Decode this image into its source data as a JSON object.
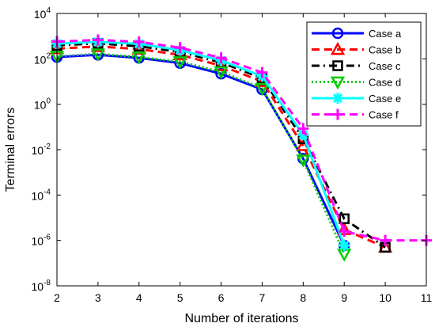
{
  "chart_data": {
    "type": "line",
    "xlabel": "Number of iterations",
    "ylabel": "Terminal errors",
    "xlim": [
      2,
      11
    ],
    "ylim": [
      1e-08,
      10000.0
    ],
    "yscale": "log",
    "grid": false,
    "legend_position": "top-right",
    "x_ticks": [
      "2",
      "3",
      "4",
      "5",
      "6",
      "7",
      "8",
      "9",
      "10",
      "11"
    ],
    "y_ticks": [
      {
        "base": "10",
        "exp": "-8",
        "value": 1e-08
      },
      {
        "base": "10",
        "exp": "-6",
        "value": 1e-06
      },
      {
        "base": "10",
        "exp": "-4",
        "value": 0.0001
      },
      {
        "base": "10",
        "exp": "-2",
        "value": 0.01
      },
      {
        "base": "10",
        "exp": "0",
        "value": 1
      },
      {
        "base": "10",
        "exp": "2",
        "value": 100.0
      },
      {
        "base": "10",
        "exp": "4",
        "value": 10000.0
      }
    ],
    "series": [
      {
        "name": "Case a",
        "color": "#0000ff",
        "dash": "solid",
        "marker": "circle",
        "x": [
          2,
          3,
          4,
          5,
          6,
          7,
          8,
          9
        ],
        "y": [
          120,
          150,
          110,
          65,
          22,
          4.5,
          0.004,
          6e-07
        ]
      },
      {
        "name": "Case b",
        "color": "#ff0000",
        "dash": "dash",
        "marker": "triangle-up",
        "x": [
          2,
          3,
          4,
          5,
          6,
          7,
          8,
          9,
          10
        ],
        "y": [
          280,
          350,
          270,
          150,
          50,
          10,
          0.015,
          3e-06,
          5e-07
        ]
      },
      {
        "name": "Case c",
        "color": "#000000",
        "dash": "dashdot",
        "marker": "square",
        "x": [
          2,
          3,
          4,
          5,
          6,
          7,
          8,
          9,
          10
        ],
        "y": [
          390,
          480,
          360,
          200,
          70,
          14,
          0.03,
          9e-06,
          5e-07
        ]
      },
      {
        "name": "Case d",
        "color": "#00cc00",
        "dash": "dot",
        "marker": "triangle-down",
        "x": [
          2,
          3,
          4,
          5,
          6,
          7,
          8,
          9
        ],
        "y": [
          130,
          165,
          120,
          75,
          27,
          5,
          0.0035,
          2.5e-07
        ]
      },
      {
        "name": "Case e",
        "color": "#00ffff",
        "dash": "solid",
        "marker": "star",
        "x": [
          2,
          3,
          4,
          5,
          6,
          7,
          8,
          9
        ],
        "y": [
          470,
          560,
          460,
          240,
          85,
          17,
          0.045,
          6e-07
        ]
      },
      {
        "name": "Case f",
        "color": "#ff00ff",
        "dash": "dash",
        "marker": "plus",
        "x": [
          2,
          3,
          4,
          5,
          6,
          7,
          8,
          9,
          10,
          11
        ],
        "y": [
          580,
          680,
          560,
          310,
          110,
          25,
          0.085,
          2.5e-06,
          1e-06,
          1e-06
        ]
      }
    ]
  }
}
